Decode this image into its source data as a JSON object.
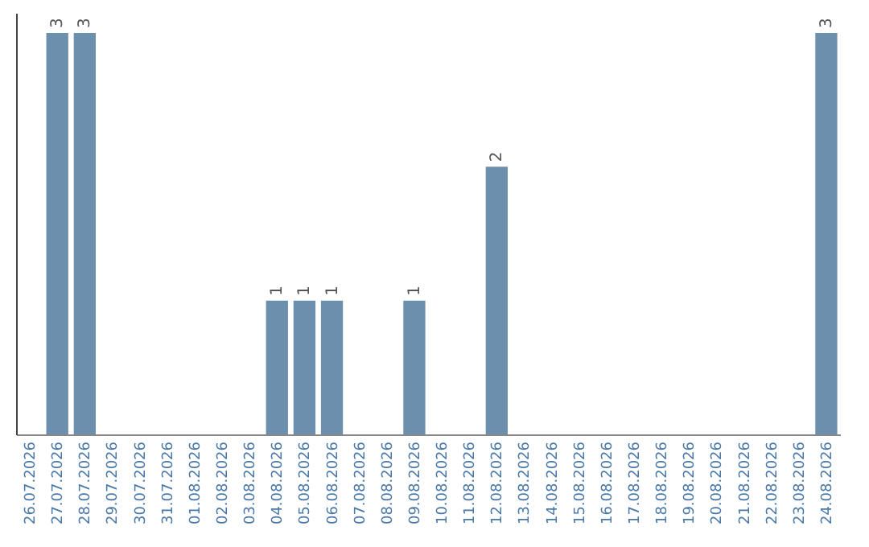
{
  "chart_data": {
    "type": "bar",
    "categories": [
      "26.07.2026",
      "27.07.2026",
      "28.07.2026",
      "29.07.2026",
      "30.07.2026",
      "31.07.2026",
      "01.08.2026",
      "02.08.2026",
      "03.08.2026",
      "04.08.2026",
      "05.08.2026",
      "06.08.2026",
      "07.08.2026",
      "08.08.2026",
      "09.08.2026",
      "10.08.2026",
      "11.08.2026",
      "12.08.2026",
      "13.08.2026",
      "14.08.2026",
      "15.08.2026",
      "16.08.2026",
      "17.08.2026",
      "18.08.2026",
      "19.08.2026",
      "20.08.2026",
      "21.08.2026",
      "22.08.2026",
      "23.08.2026",
      "24.08.2026"
    ],
    "values": [
      0,
      3,
      3,
      0,
      0,
      0,
      0,
      0,
      0,
      1,
      1,
      1,
      0,
      0,
      1,
      0,
      0,
      2,
      0,
      0,
      0,
      0,
      0,
      0,
      0,
      0,
      0,
      0,
      0,
      3
    ],
    "value_labels": [
      null,
      "3",
      "3",
      null,
      null,
      null,
      null,
      null,
      null,
      "1",
      "1",
      "1",
      null,
      null,
      "1",
      null,
      null,
      "2",
      null,
      null,
      null,
      null,
      null,
      null,
      null,
      null,
      null,
      null,
      null,
      "3"
    ],
    "color": "#6d8fae",
    "ylim": [
      0,
      3.15
    ],
    "tick_labels": "x",
    "grid": false
  }
}
